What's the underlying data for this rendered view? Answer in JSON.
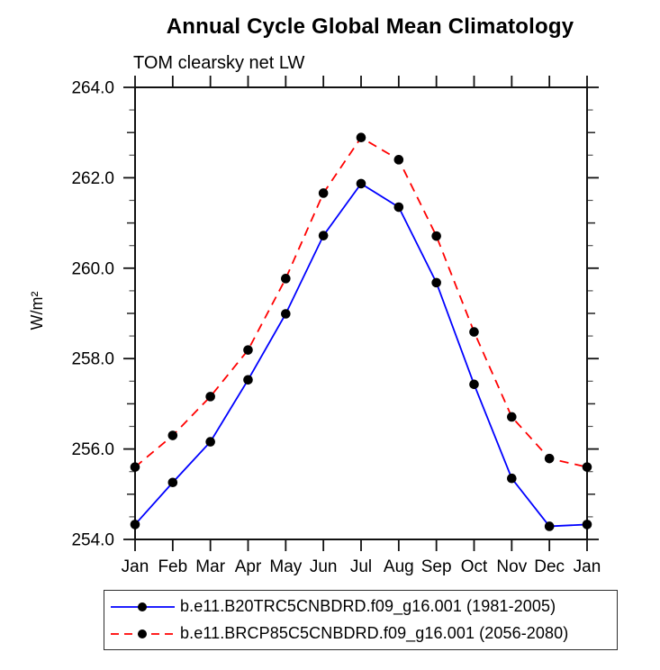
{
  "page": {
    "background": "#ffffff"
  },
  "chart_data": {
    "type": "line",
    "title": "Annual Cycle Global Mean Climatology",
    "subtitle": "TOM clearsky net LW",
    "ylabel": "W/m²",
    "xlabel": "",
    "categories": [
      "Jan",
      "Feb",
      "Mar",
      "Apr",
      "May",
      "Jun",
      "Jul",
      "Aug",
      "Sep",
      "Oct",
      "Nov",
      "Dec",
      "Jan"
    ],
    "ylim": [
      254.0,
      264.0
    ],
    "ytick_major_step": 2.0,
    "ytick_minor_step": 0.5,
    "ytick_labels": [
      "254.0",
      "256.0",
      "258.0",
      "260.0",
      "262.0",
      "264.0"
    ],
    "grid": false,
    "legend_position": "bottom",
    "axis_color": "#111111",
    "marker_shape": "filled-circle",
    "marker_color": "#000000",
    "series": [
      {
        "name": "b.e11.B20TRC5CNBDRD.f09_g16.001 (1981-2005)",
        "color": "#0000ff",
        "line_style": "solid",
        "values": [
          254.33,
          255.26,
          256.16,
          257.53,
          258.99,
          260.72,
          261.87,
          261.35,
          259.68,
          257.43,
          255.35,
          254.29,
          254.33
        ]
      },
      {
        "name": "b.e11.BRCP85C5CNBDRD.f09_g16.001 (2056-2080)",
        "color": "#ff0000",
        "line_style": "dashed",
        "values": [
          255.6,
          256.3,
          257.16,
          258.19,
          259.77,
          261.66,
          262.89,
          262.4,
          260.71,
          258.59,
          256.71,
          255.79,
          255.6
        ]
      }
    ]
  }
}
